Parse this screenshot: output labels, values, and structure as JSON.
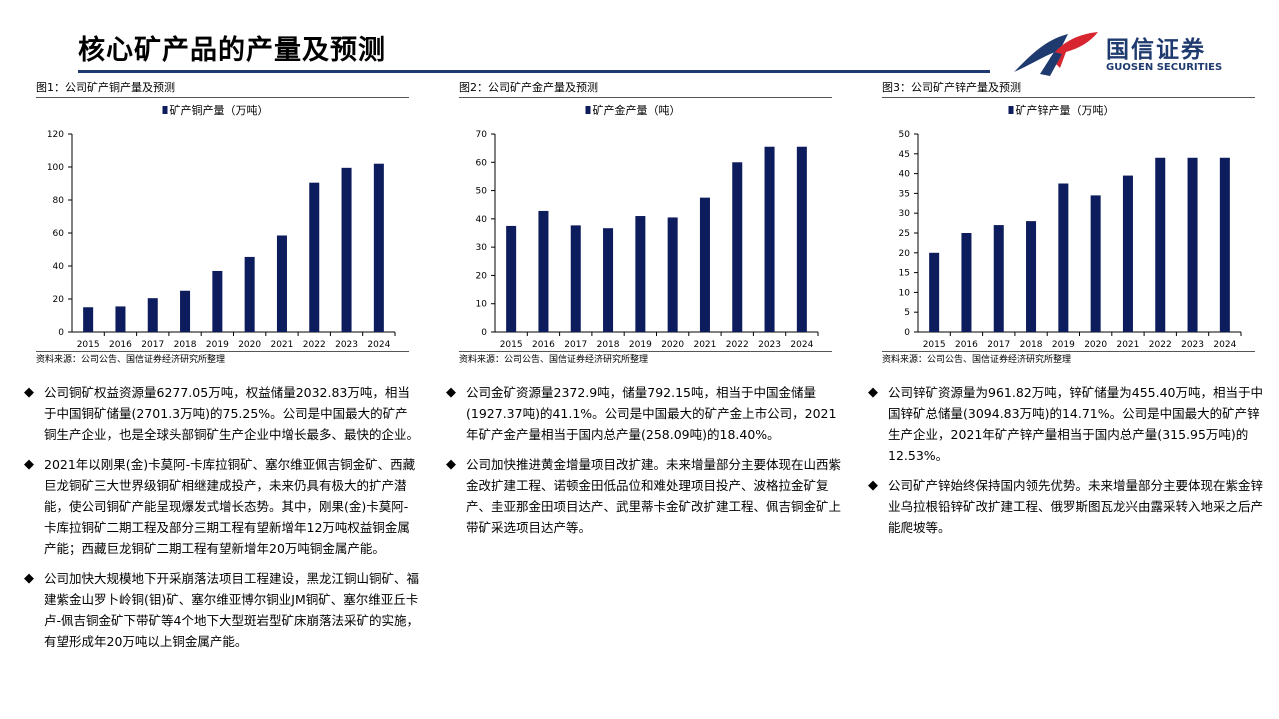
{
  "header": {
    "title": "核心矿产品的产量及预测",
    "logo_cn": "国信证券",
    "logo_en": "GUOSEN SECURITIES",
    "accent_color": "#1f3a6e",
    "logo_red": "#d7262f"
  },
  "charts": [
    {
      "fig_title": "图1：公司矿产铜产量及预测",
      "source": "资料来源：公司公告、国信证券经济研究所整理",
      "chart_data": {
        "type": "bar",
        "legend": "矿产铜产量（万吨）",
        "legend_position": "top-center",
        "categories": [
          "2015",
          "2016",
          "2017",
          "2018",
          "2019",
          "2020",
          "2021",
          "2022",
          "2023",
          "2024"
        ],
        "values": [
          15,
          15.5,
          20.5,
          25,
          37,
          45.5,
          58.5,
          90.5,
          99.5,
          102
        ],
        "ylim": [
          0,
          120
        ],
        "yticks": [
          0,
          20,
          40,
          60,
          80,
          100,
          120
        ],
        "bar_color": "#0d1c5c",
        "grid": false
      }
    },
    {
      "fig_title": "图2：公司矿产金产量及预测",
      "source": "资料来源：公司公告、国信证券经济研究所整理",
      "chart_data": {
        "type": "bar",
        "legend": "矿产金产量（吨）",
        "legend_position": "top-center",
        "categories": [
          "2015",
          "2016",
          "2017",
          "2018",
          "2019",
          "2020",
          "2021",
          "2022",
          "2023",
          "2024"
        ],
        "values": [
          37.5,
          42.8,
          37.7,
          36.7,
          41,
          40.5,
          47.5,
          60,
          65.5,
          65.5
        ],
        "ylim": [
          0,
          70
        ],
        "yticks": [
          0,
          10,
          20,
          30,
          40,
          50,
          60,
          70
        ],
        "bar_color": "#0d1c5c",
        "grid": false
      }
    },
    {
      "fig_title": "图3：公司矿产锌产量及预测",
      "source": "资料来源：公司公告、国信证券经济研究所整理",
      "chart_data": {
        "type": "bar",
        "legend": "矿产锌产量（万吨）",
        "legend_position": "top-center",
        "categories": [
          "2015",
          "2016",
          "2017",
          "2018",
          "2019",
          "2020",
          "2021",
          "2022",
          "2023",
          "2024"
        ],
        "values": [
          20,
          25,
          27,
          28,
          37.5,
          34.5,
          39.5,
          44,
          44,
          44
        ],
        "ylim": [
          0,
          50
        ],
        "yticks": [
          0,
          5,
          10,
          15,
          20,
          25,
          30,
          35,
          40,
          45,
          50
        ],
        "bar_color": "#0d1c5c",
        "grid": false
      }
    }
  ],
  "bullets": [
    [
      "公司铜矿权益资源量6277.05万吨，权益储量2032.83万吨，相当于中国铜矿储量(2701.3万吨)的75.25%。公司是中国最大的矿产铜生产企业，也是全球头部铜矿生产企业中增长最多、最快的企业。",
      "2021年以刚果(金)卡莫阿-卡库拉铜矿、塞尔维亚佩吉铜金矿、西藏巨龙铜矿三大世界级铜矿相继建成投产，未来仍具有极大的扩产潜能，使公司铜矿产能呈现爆发式增长态势。其中，刚果(金)卡莫阿-卡库拉铜矿二期工程及部分三期工程有望新增年12万吨权益铜金属产能；西藏巨龙铜矿二期工程有望新增年20万吨铜金属产能。",
      "公司加快大规模地下开采崩落法项目工程建设，黑龙江铜山铜矿、福建紫金山罗卜岭铜(钼)矿、塞尔维亚博尔铜业JM铜矿、塞尔维亚丘卡卢-佩吉铜金矿下带矿等4个地下大型斑岩型矿床崩落法采矿的实施，有望形成年20万吨以上铜金属产能。"
    ],
    [
      "公司金矿资源量2372.9吨，储量792.15吨，相当于中国金储量(1927.37吨)的41.1%。公司是中国最大的矿产金上市公司，2021年矿产金产量相当于国内总产量(258.09吨)的18.40%。",
      "公司加快推进黄金增量项目改扩建。未来增量部分主要体现在山西紫金改扩建工程、诺顿金田低品位和难处理项目投产、波格拉金矿复产、圭亚那金田项目达产、武里蒂卡金矿改扩建工程、佩吉铜金矿上带矿采选项目达产等。"
    ],
    [
      "公司锌矿资源量为961.82万吨，锌矿储量为455.40万吨，相当于中国锌矿总储量(3094.83万吨)的14.71%。公司是中国最大的矿产锌生产企业，2021年矿产锌产量相当于国内总产量(315.95万吨)的12.53%。",
      "公司矿产锌始终保持国内领先优势。未来增量部分主要体现在紫金锌业乌拉根铅锌矿改扩建工程、俄罗斯图瓦龙兴由露采转入地采之后产能爬坡等。"
    ]
  ],
  "bullet_symbol": "◆"
}
